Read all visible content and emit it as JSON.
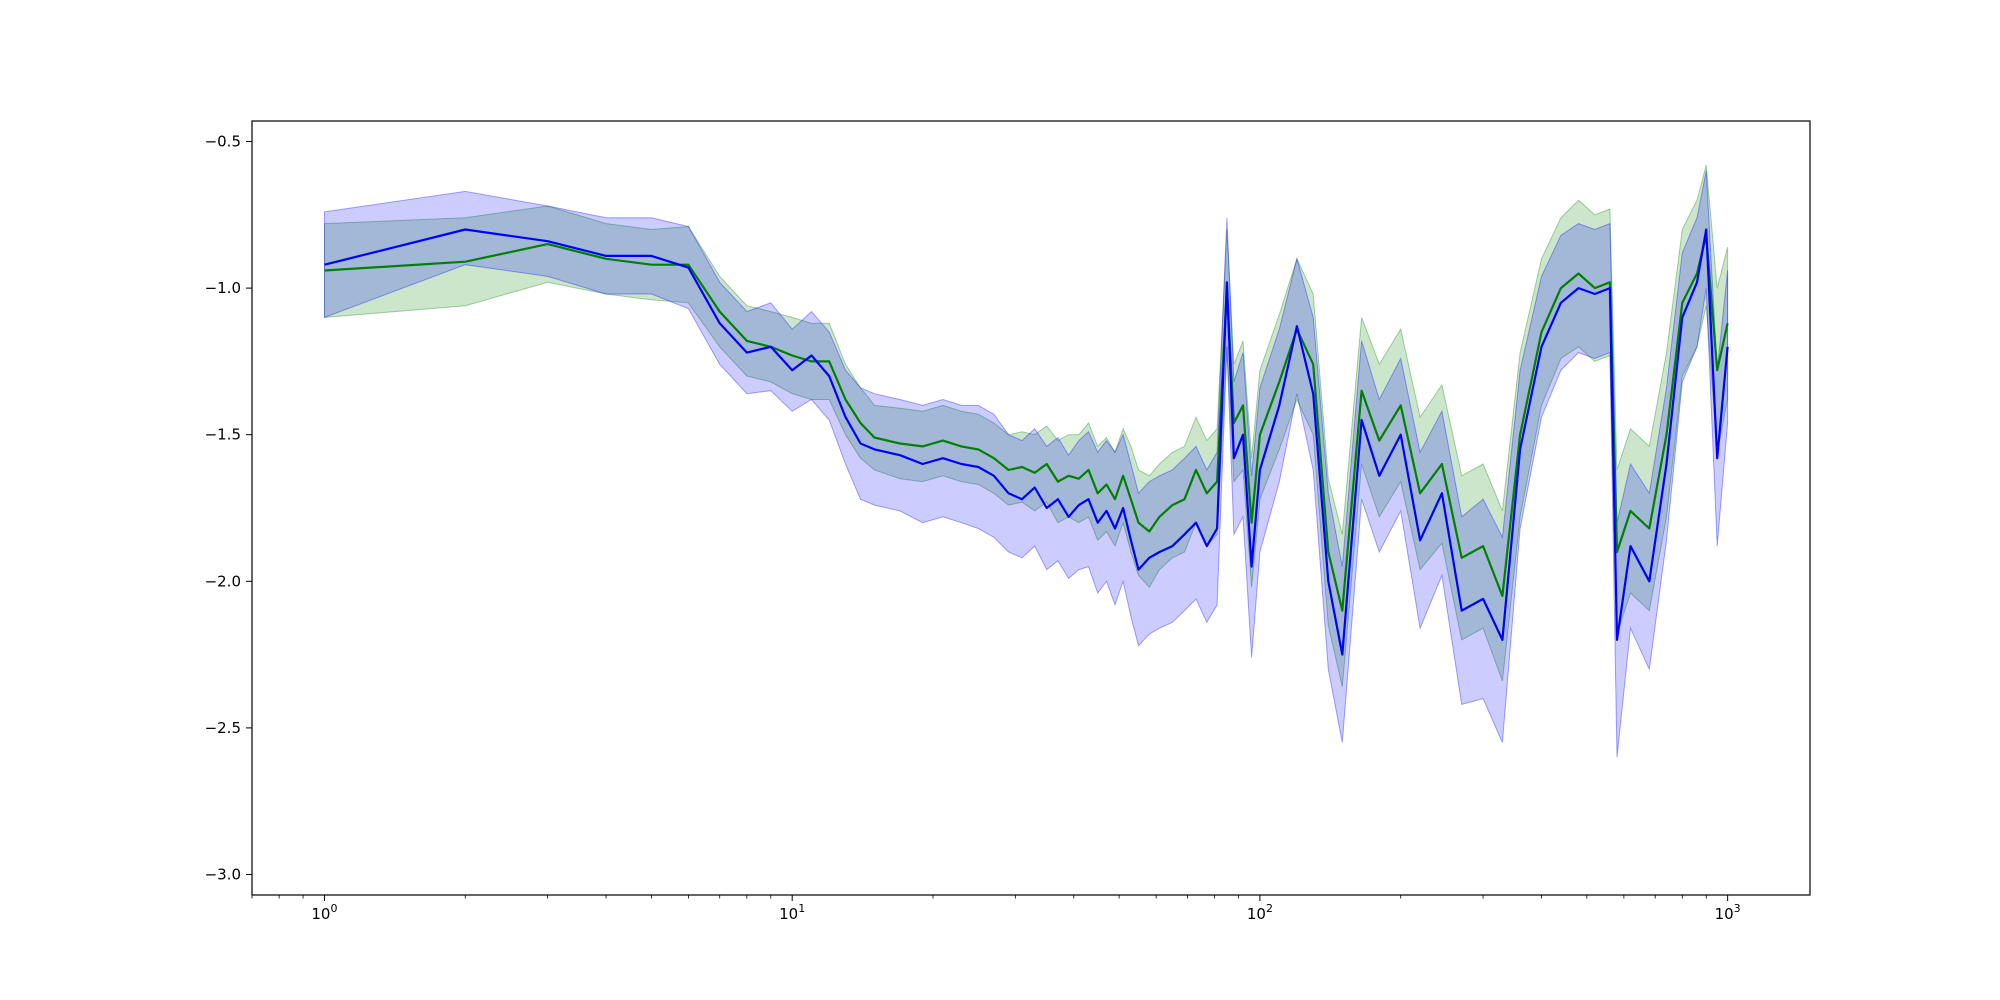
{
  "chart_data": {
    "type": "line",
    "title": "",
    "xlabel": "",
    "ylabel": "",
    "x_scale": "log",
    "xlim": [
      0.7,
      1500
    ],
    "ylim": [
      -3.07,
      -0.43
    ],
    "grid": false,
    "legend": "none",
    "x_ticks": [
      {
        "value": 1,
        "base": "10",
        "exp": "0"
      },
      {
        "value": 10,
        "base": "10",
        "exp": "1"
      },
      {
        "value": 100,
        "base": "10",
        "exp": "2"
      },
      {
        "value": 1000,
        "base": "10",
        "exp": "3"
      }
    ],
    "y_ticks": [
      {
        "value": -0.5,
        "label": "−0.5"
      },
      {
        "value": -1.0,
        "label": "−1.0"
      },
      {
        "value": -1.5,
        "label": "−1.5"
      },
      {
        "value": -2.0,
        "label": "−2.0"
      },
      {
        "value": -2.5,
        "label": "−2.5"
      },
      {
        "value": -3.0,
        "label": "−3.0"
      }
    ],
    "series": [
      {
        "color": "#008000",
        "band_color": "#008000",
        "band_opacity": 0.2,
        "x": [
          1,
          2,
          3,
          4,
          5,
          6,
          7,
          8,
          9,
          10,
          11,
          12,
          13,
          14,
          15,
          17,
          19,
          21,
          23,
          25,
          27,
          29,
          31,
          33,
          35,
          37,
          39,
          41,
          43,
          45,
          47,
          49,
          51,
          53,
          55,
          58,
          61,
          65,
          69,
          73,
          77,
          81,
          85,
          88,
          92,
          96,
          100,
          110,
          120,
          130,
          140,
          150,
          165,
          180,
          200,
          220,
          245,
          270,
          300,
          330,
          360,
          400,
          440,
          480,
          520,
          560,
          580,
          620,
          680,
          740,
          800,
          860,
          900,
          950,
          1000
        ],
        "y": [
          -0.94,
          -0.91,
          -0.85,
          -0.9,
          -0.92,
          -0.92,
          -1.08,
          -1.18,
          -1.2,
          -1.23,
          -1.25,
          -1.25,
          -1.38,
          -1.46,
          -1.51,
          -1.53,
          -1.54,
          -1.52,
          -1.54,
          -1.55,
          -1.58,
          -1.62,
          -1.61,
          -1.63,
          -1.6,
          -1.66,
          -1.64,
          -1.65,
          -1.62,
          -1.7,
          -1.67,
          -1.72,
          -1.64,
          -1.72,
          -1.8,
          -1.83,
          -1.78,
          -1.74,
          -1.72,
          -1.62,
          -1.7,
          -1.66,
          -1.0,
          -1.46,
          -1.4,
          -1.8,
          -1.5,
          -1.32,
          -1.14,
          -1.26,
          -1.9,
          -2.1,
          -1.35,
          -1.52,
          -1.4,
          -1.7,
          -1.6,
          -1.92,
          -1.88,
          -2.05,
          -1.5,
          -1.15,
          -1.0,
          -0.95,
          -1.0,
          -0.98,
          -1.9,
          -1.76,
          -1.82,
          -1.5,
          -1.05,
          -0.95,
          -0.82,
          -1.28,
          -1.12
        ],
        "lower": [
          -1.1,
          -1.06,
          -0.98,
          -1.02,
          -1.04,
          -1.05,
          -1.2,
          -1.3,
          -1.32,
          -1.36,
          -1.38,
          -1.38,
          -1.5,
          -1.58,
          -1.62,
          -1.65,
          -1.66,
          -1.64,
          -1.66,
          -1.67,
          -1.7,
          -1.74,
          -1.73,
          -1.76,
          -1.73,
          -1.8,
          -1.78,
          -1.8,
          -1.78,
          -1.86,
          -1.83,
          -1.88,
          -1.8,
          -1.9,
          -1.98,
          -2.02,
          -1.96,
          -1.92,
          -1.9,
          -1.8,
          -1.88,
          -1.84,
          -1.2,
          -1.66,
          -1.62,
          -2.02,
          -1.72,
          -1.55,
          -1.38,
          -1.5,
          -2.15,
          -2.36,
          -1.6,
          -1.78,
          -1.66,
          -1.96,
          -1.87,
          -2.2,
          -2.16,
          -2.34,
          -1.78,
          -1.4,
          -1.24,
          -1.2,
          -1.25,
          -1.23,
          -2.18,
          -2.04,
          -2.1,
          -1.78,
          -1.3,
          -1.2,
          -1.06,
          -1.56,
          -1.38
        ],
        "upper": [
          -0.78,
          -0.76,
          -0.72,
          -0.78,
          -0.8,
          -0.79,
          -0.96,
          -1.06,
          -1.08,
          -1.1,
          -1.12,
          -1.12,
          -1.26,
          -1.34,
          -1.4,
          -1.41,
          -1.42,
          -1.4,
          -1.42,
          -1.43,
          -1.46,
          -1.5,
          -1.49,
          -1.5,
          -1.47,
          -1.52,
          -1.5,
          -1.5,
          -1.46,
          -1.54,
          -1.51,
          -1.56,
          -1.48,
          -1.54,
          -1.62,
          -1.64,
          -1.6,
          -1.56,
          -1.54,
          -1.44,
          -1.52,
          -1.48,
          -0.8,
          -1.26,
          -1.18,
          -1.58,
          -1.28,
          -1.09,
          -0.9,
          -1.02,
          -1.65,
          -1.84,
          -1.1,
          -1.26,
          -1.14,
          -1.44,
          -1.33,
          -1.64,
          -1.6,
          -1.76,
          -1.22,
          -0.9,
          -0.76,
          -0.7,
          -0.75,
          -0.73,
          -1.62,
          -1.48,
          -1.54,
          -1.22,
          -0.8,
          -0.7,
          -0.58,
          -1.0,
          -0.86
        ]
      },
      {
        "color": "#0000ff",
        "band_color": "#0000ff",
        "band_opacity": 0.2,
        "x": [
          1,
          2,
          3,
          4,
          5,
          6,
          7,
          8,
          9,
          10,
          11,
          12,
          13,
          14,
          15,
          17,
          19,
          21,
          23,
          25,
          27,
          29,
          31,
          33,
          35,
          37,
          39,
          41,
          43,
          45,
          47,
          49,
          51,
          53,
          55,
          58,
          61,
          65,
          69,
          73,
          77,
          81,
          85,
          88,
          92,
          96,
          100,
          110,
          120,
          130,
          140,
          150,
          165,
          180,
          200,
          220,
          245,
          270,
          300,
          330,
          360,
          400,
          440,
          480,
          520,
          560,
          580,
          620,
          680,
          740,
          800,
          860,
          900,
          950,
          1000
        ],
        "y": [
          -0.92,
          -0.8,
          -0.84,
          -0.89,
          -0.89,
          -0.93,
          -1.12,
          -1.22,
          -1.2,
          -1.28,
          -1.23,
          -1.3,
          -1.44,
          -1.53,
          -1.55,
          -1.57,
          -1.6,
          -1.58,
          -1.6,
          -1.61,
          -1.64,
          -1.7,
          -1.72,
          -1.68,
          -1.75,
          -1.72,
          -1.78,
          -1.74,
          -1.72,
          -1.8,
          -1.76,
          -1.82,
          -1.75,
          -1.86,
          -1.96,
          -1.92,
          -1.9,
          -1.88,
          -1.84,
          -1.8,
          -1.88,
          -1.82,
          -0.98,
          -1.58,
          -1.5,
          -1.95,
          -1.62,
          -1.4,
          -1.13,
          -1.36,
          -2.0,
          -2.25,
          -1.45,
          -1.64,
          -1.5,
          -1.86,
          -1.7,
          -2.1,
          -2.06,
          -2.2,
          -1.55,
          -1.2,
          -1.05,
          -1.0,
          -1.02,
          -1.0,
          -2.2,
          -1.88,
          -2.0,
          -1.6,
          -1.1,
          -0.98,
          -0.8,
          -1.58,
          -1.2
        ],
        "lower": [
          -1.1,
          -0.92,
          -0.96,
          -1.02,
          -1.02,
          -1.07,
          -1.26,
          -1.36,
          -1.35,
          -1.42,
          -1.38,
          -1.45,
          -1.6,
          -1.72,
          -1.74,
          -1.76,
          -1.8,
          -1.78,
          -1.8,
          -1.82,
          -1.85,
          -1.9,
          -1.92,
          -1.88,
          -1.96,
          -1.93,
          -1.99,
          -1.96,
          -1.95,
          -2.04,
          -2.0,
          -2.08,
          -2.0,
          -2.12,
          -2.22,
          -2.18,
          -2.16,
          -2.14,
          -2.1,
          -2.06,
          -2.14,
          -2.08,
          -1.2,
          -1.84,
          -1.78,
          -2.26,
          -1.9,
          -1.66,
          -1.36,
          -1.62,
          -2.3,
          -2.55,
          -1.72,
          -1.9,
          -1.76,
          -2.16,
          -1.98,
          -2.42,
          -2.4,
          -2.55,
          -1.82,
          -1.44,
          -1.28,
          -1.22,
          -1.24,
          -1.22,
          -2.6,
          -2.16,
          -2.3,
          -1.86,
          -1.32,
          -1.2,
          -1.0,
          -1.88,
          -1.46
        ],
        "upper": [
          -0.74,
          -0.67,
          -0.72,
          -0.76,
          -0.76,
          -0.79,
          -0.98,
          -1.08,
          -1.05,
          -1.14,
          -1.08,
          -1.15,
          -1.28,
          -1.34,
          -1.36,
          -1.38,
          -1.4,
          -1.38,
          -1.4,
          -1.4,
          -1.43,
          -1.5,
          -1.52,
          -1.48,
          -1.54,
          -1.51,
          -1.57,
          -1.52,
          -1.49,
          -1.56,
          -1.52,
          -1.56,
          -1.5,
          -1.6,
          -1.7,
          -1.66,
          -1.64,
          -1.62,
          -1.58,
          -1.54,
          -1.62,
          -1.56,
          -0.76,
          -1.32,
          -1.22,
          -1.64,
          -1.34,
          -1.14,
          -0.9,
          -1.1,
          -1.7,
          -1.95,
          -1.18,
          -1.38,
          -1.24,
          -1.56,
          -1.42,
          -1.78,
          -1.72,
          -1.85,
          -1.28,
          -0.96,
          -0.82,
          -0.78,
          -0.8,
          -0.78,
          -1.8,
          -1.6,
          -1.7,
          -1.34,
          -0.88,
          -0.76,
          -0.6,
          -1.28,
          -0.94
        ]
      }
    ]
  }
}
